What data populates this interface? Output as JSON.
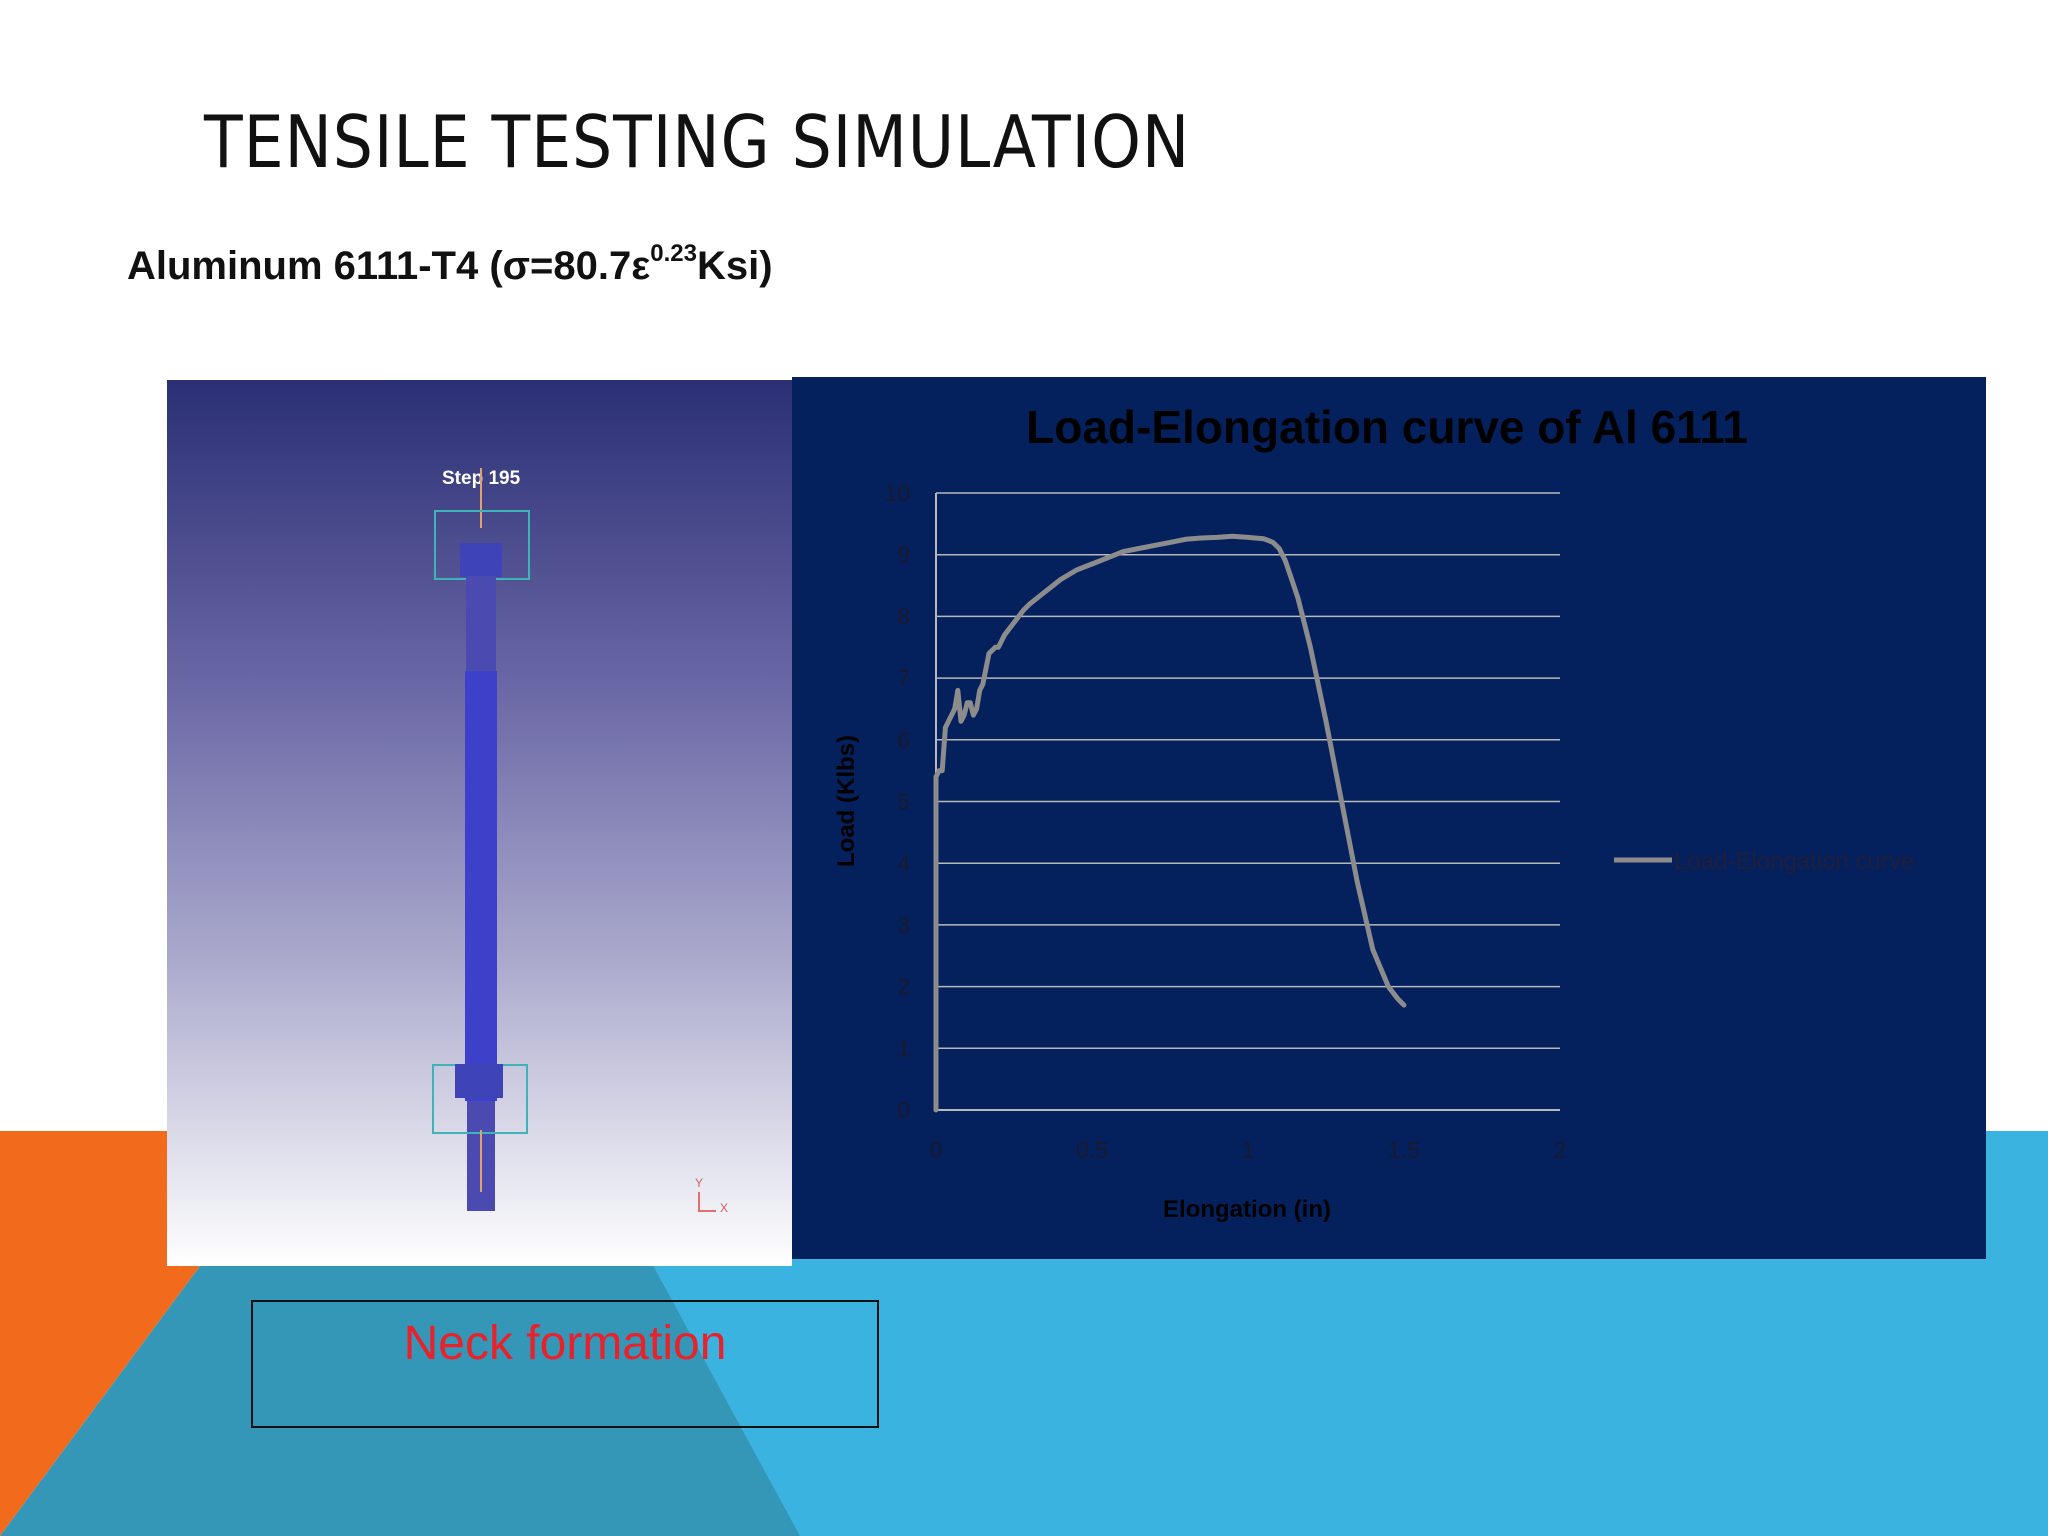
{
  "slide": {
    "title": "TENSILE TESTING SIMULATION",
    "subtitle_main": "Aluminum 6111-T4 (σ=80.7ε",
    "subtitle_exponent": "0.23",
    "subtitle_end": "Ksi)"
  },
  "simulation": {
    "step_label": "Step 195",
    "axis_y": "Y",
    "axis_x": "X"
  },
  "callout": {
    "text": "Neck formation"
  },
  "colors": {
    "orange": "#f26b1d",
    "light_blue": "#3bb3e0",
    "teal": "#3597b8",
    "chart_bg": "#04205d",
    "series_line": "#8c8c8c",
    "callout_text": "#e8212a"
  },
  "chart_data": {
    "type": "line",
    "title": "Load-Elongation curve of Al 6111",
    "xlabel": "Elongation (in)",
    "ylabel": "Load (Klbs)",
    "xlim": [
      0,
      2
    ],
    "ylim": [
      0,
      10
    ],
    "xticks": [
      "0",
      "0.5",
      "1",
      "1.5",
      "2"
    ],
    "yticks": [
      "0",
      "1",
      "2",
      "3",
      "4",
      "5",
      "6",
      "7",
      "8",
      "9",
      "10"
    ],
    "grid": true,
    "legend_position": "right",
    "series": [
      {
        "name": "Load-Elongation curve",
        "x": [
          0.0,
          0.0,
          0.005,
          0.01,
          0.02,
          0.03,
          0.04,
          0.05,
          0.06,
          0.07,
          0.08,
          0.09,
          0.1,
          0.11,
          0.12,
          0.13,
          0.14,
          0.15,
          0.17,
          0.19,
          0.2,
          0.22,
          0.25,
          0.28,
          0.3,
          0.35,
          0.4,
          0.45,
          0.5,
          0.55,
          0.6,
          0.65,
          0.7,
          0.75,
          0.8,
          0.85,
          0.9,
          0.95,
          1.0,
          1.05,
          1.08,
          1.1,
          1.12,
          1.14,
          1.16,
          1.18,
          1.2,
          1.25,
          1.3,
          1.35,
          1.4,
          1.45,
          1.48,
          1.5
        ],
        "y": [
          0.0,
          5.4,
          5.45,
          5.5,
          5.5,
          6.2,
          6.3,
          6.4,
          6.5,
          6.8,
          6.3,
          6.4,
          6.6,
          6.6,
          6.4,
          6.5,
          6.8,
          6.9,
          7.4,
          7.5,
          7.5,
          7.7,
          7.9,
          8.1,
          8.2,
          8.4,
          8.6,
          8.75,
          8.85,
          8.95,
          9.05,
          9.1,
          9.15,
          9.2,
          9.25,
          9.27,
          9.28,
          9.3,
          9.28,
          9.26,
          9.2,
          9.1,
          8.9,
          8.6,
          8.3,
          7.9,
          7.5,
          6.3,
          5.0,
          3.7,
          2.6,
          2.0,
          1.8,
          1.7
        ]
      }
    ]
  }
}
